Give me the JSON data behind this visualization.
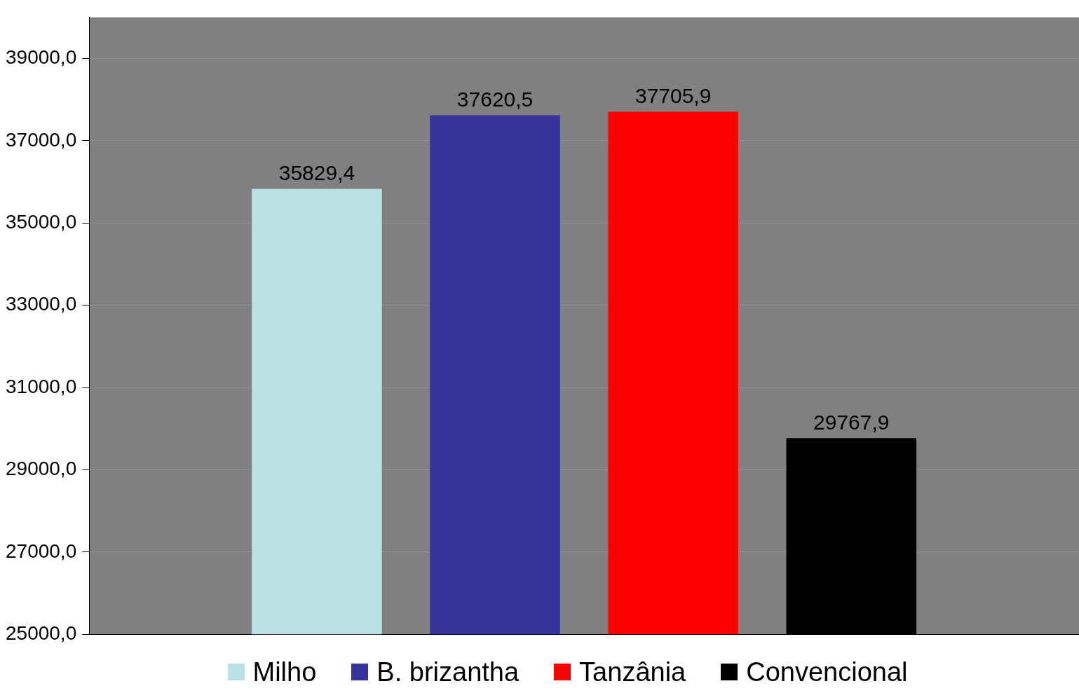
{
  "chart_data": {
    "type": "bar",
    "categories": [
      null
    ],
    "series": [
      {
        "name": "Milho",
        "color": "#bbe0e3",
        "values": [
          35829.4
        ],
        "value_labels": [
          "35829,4"
        ]
      },
      {
        "name": "B. brizantha",
        "color": "#333399",
        "values": [
          37620.5
        ],
        "value_labels": [
          "37620,5"
        ]
      },
      {
        "name": "Tanzânia",
        "color": "#ff0000",
        "values": [
          37705.9
        ],
        "value_labels": [
          "37705,9"
        ]
      },
      {
        "name": "Convencional",
        "color": "#000000",
        "values": [
          29767.9
        ],
        "value_labels": [
          "29767,9"
        ]
      }
    ],
    "ylim": [
      25000,
      40000
    ],
    "yticks": [
      {
        "value": 25000,
        "label": "25000,0"
      },
      {
        "value": 27000,
        "label": "27000,0"
      },
      {
        "value": 29000,
        "label": "29000,0"
      },
      {
        "value": 31000,
        "label": "31000,0"
      },
      {
        "value": 33000,
        "label": "33000,0"
      },
      {
        "value": 35000,
        "label": "35000,0"
      },
      {
        "value": 37000,
        "label": "37000,0"
      },
      {
        "value": 39000,
        "label": "39000,0"
      }
    ],
    "grid": "y",
    "legend": "bottom"
  }
}
